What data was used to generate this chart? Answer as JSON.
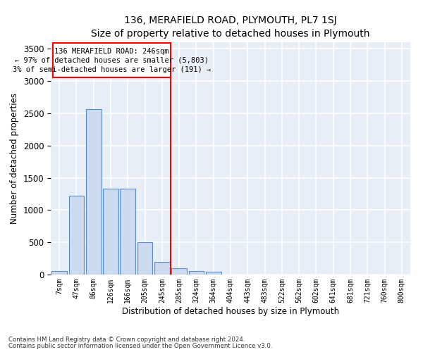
{
  "title": "136, MERAFIELD ROAD, PLYMOUTH, PL7 1SJ",
  "subtitle": "Size of property relative to detached houses in Plymouth",
  "xlabel": "Distribution of detached houses by size in Plymouth",
  "ylabel": "Number of detached properties",
  "bar_color": "#ccdaf0",
  "bar_edge_color": "#5b8ec8",
  "background_color": "#e8eef8",
  "grid_color": "#ffffff",
  "categories": [
    "7sqm",
    "47sqm",
    "86sqm",
    "126sqm",
    "166sqm",
    "205sqm",
    "245sqm",
    "285sqm",
    "324sqm",
    "364sqm",
    "404sqm",
    "443sqm",
    "483sqm",
    "522sqm",
    "562sqm",
    "602sqm",
    "641sqm",
    "681sqm",
    "721sqm",
    "760sqm",
    "800sqm"
  ],
  "values": [
    55,
    1220,
    2565,
    1330,
    1330,
    500,
    200,
    100,
    55,
    40,
    5,
    5,
    5,
    5,
    0,
    0,
    0,
    0,
    0,
    0,
    0
  ],
  "ylim": [
    0,
    3600
  ],
  "yticks": [
    0,
    500,
    1000,
    1500,
    2000,
    2500,
    3000,
    3500
  ],
  "annotation_line1": "136 MERAFIELD ROAD: 246sqm",
  "annotation_line2": "← 97% of detached houses are smaller (5,803)",
  "annotation_line3": "3% of semi-detached houses are larger (191) →",
  "footnote_line1": "Contains HM Land Registry data © Crown copyright and database right 2024.",
  "footnote_line2": "Contains public sector information licensed under the Open Government Licence v3.0."
}
